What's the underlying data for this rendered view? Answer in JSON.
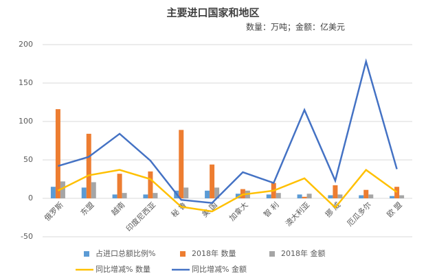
{
  "chart_data": {
    "type": "bar-line",
    "title": "主要进口国家和地区",
    "subtitle": "数量：万吨；金额：亿美元",
    "categories": [
      "俄罗斯",
      "东盟",
      "越南",
      "印度尼西亚",
      "秘 鲁",
      "美 国",
      "加拿大",
      "智 利",
      "澳大利亚",
      "挪 威",
      "厄瓜多尔",
      "欧 盟"
    ],
    "series": [
      {
        "name": "占进口总额比例%",
        "type": "bar",
        "color": "#5b9bd5",
        "values": [
          15,
          14,
          5,
          5,
          10,
          10,
          6,
          5,
          5,
          4,
          4,
          3
        ]
      },
      {
        "name": "2018年 数量",
        "type": "bar",
        "color": "#ed7d31",
        "values": [
          116,
          84,
          32,
          35,
          89,
          44,
          12,
          20,
          2,
          17,
          11,
          15
        ]
      },
      {
        "name": "2018年 金额",
        "type": "bar",
        "color": "#a5a5a5",
        "values": [
          22,
          21,
          7,
          7,
          14,
          14,
          10,
          7,
          6,
          5,
          5,
          4
        ]
      },
      {
        "name": "同比增减% 数量",
        "type": "line",
        "color": "#ffc000",
        "values": [
          10,
          30,
          37,
          25,
          -11,
          -17,
          5,
          10,
          26,
          -12,
          37,
          8
        ]
      },
      {
        "name": "同比增减% 金额",
        "type": "line",
        "color": "#4472c4",
        "values": [
          42,
          54,
          84,
          49,
          -2,
          -6,
          34,
          20,
          115,
          23,
          178,
          38
        ]
      }
    ],
    "ylim": [
      -50,
      200
    ],
    "yticks": [
      -50,
      0,
      50,
      100,
      150,
      200
    ],
    "grid": true
  }
}
